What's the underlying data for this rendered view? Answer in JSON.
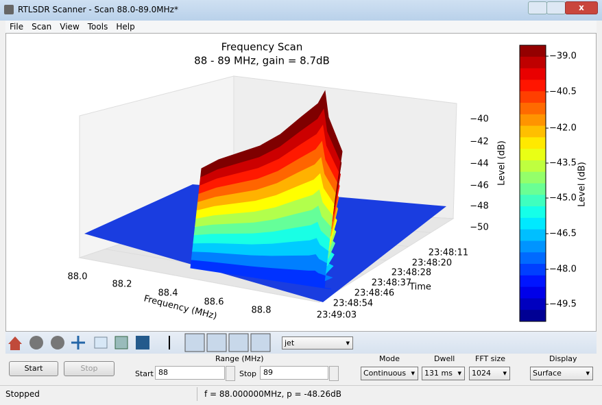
{
  "window": {
    "title": "RTLSDR Scanner - Scan 88.0-89.0MHz*"
  },
  "menu": [
    "File",
    "Scan",
    "View",
    "Tools",
    "Help"
  ],
  "plot": {
    "title": "Frequency Scan",
    "subtitle": "88 - 89 MHz, gain = 8.7dB",
    "x_label": "Frequency (MHz)",
    "x_ticks": [
      "88.0",
      "88.2",
      "88.4",
      "88.6",
      "88.8"
    ],
    "y_label": "Time",
    "y_ticks": [
      "23:48:11",
      "23:48:20",
      "23:48:28",
      "23:48:37",
      "23:48:46",
      "23:48:54",
      "23:49:03"
    ],
    "z_label": "Level (dB)",
    "z_ticks": [
      "−40",
      "−42",
      "−44",
      "−46",
      "−48",
      "−50"
    ],
    "colorbar_label": "Level (dB)",
    "colorbar_ticks": [
      "−39.0",
      "−40.5",
      "−42.0",
      "−43.5",
      "−45.0",
      "−46.5",
      "−48.0",
      "−49.5"
    ]
  },
  "toolbar": {
    "colormap": "jet"
  },
  "controls": {
    "start": "Start",
    "stop": "Stop",
    "range_label": "Range (MHz)",
    "start_label": "Start",
    "start_value": "88",
    "stop_label": "Stop",
    "stop_value": "89",
    "mode_label": "Mode",
    "mode": "Continuous",
    "dwell_label": "Dwell",
    "dwell": "131 ms",
    "fft_label": "FFT size",
    "fft": "1024",
    "display_label": "Display",
    "display": "Surface"
  },
  "status": {
    "left": "Stopped",
    "right": "f = 88.000000MHz, p = -48.26dB"
  }
}
